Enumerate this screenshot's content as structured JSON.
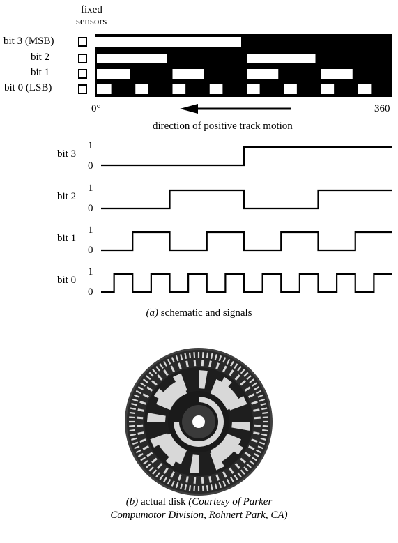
{
  "header": {
    "sensors_line1": "fixed",
    "sensors_line2": "sensors"
  },
  "tracks": [
    {
      "label": "bit 3 (MSB)",
      "bit": 3
    },
    {
      "label": "bit 2",
      "bit": 2
    },
    {
      "label": "bit 1",
      "bit": 1
    },
    {
      "label": "bit 0 (LSB)",
      "bit": 0
    }
  ],
  "axis": {
    "start_label": "0°",
    "end_label": "360",
    "segments": 16
  },
  "direction_label": "direction  of positive track motion",
  "signals": [
    {
      "name": "bit 3",
      "high": "1",
      "low": "0",
      "bit": 3
    },
    {
      "name": "bit 2",
      "high": "1",
      "low": "0",
      "bit": 2
    },
    {
      "name": "bit 1",
      "high": "1",
      "low": "0",
      "bit": 1
    },
    {
      "name": "bit 0",
      "high": "1",
      "low": "0",
      "bit": 0
    }
  ],
  "caption_a": {
    "letter": "(a)",
    "text": " schematic and signals"
  },
  "caption_b": {
    "letter": "(b)",
    "text": " actual disk ",
    "credit_1": "(Courtesy of Parker",
    "credit_2": "Compumotor Division, Rohnert Park, CA)"
  },
  "colors": {
    "ink": "#000000",
    "paper": "#ffffff",
    "disk_ring": "#404040",
    "disk_pattern": "#d8d8d8"
  }
}
